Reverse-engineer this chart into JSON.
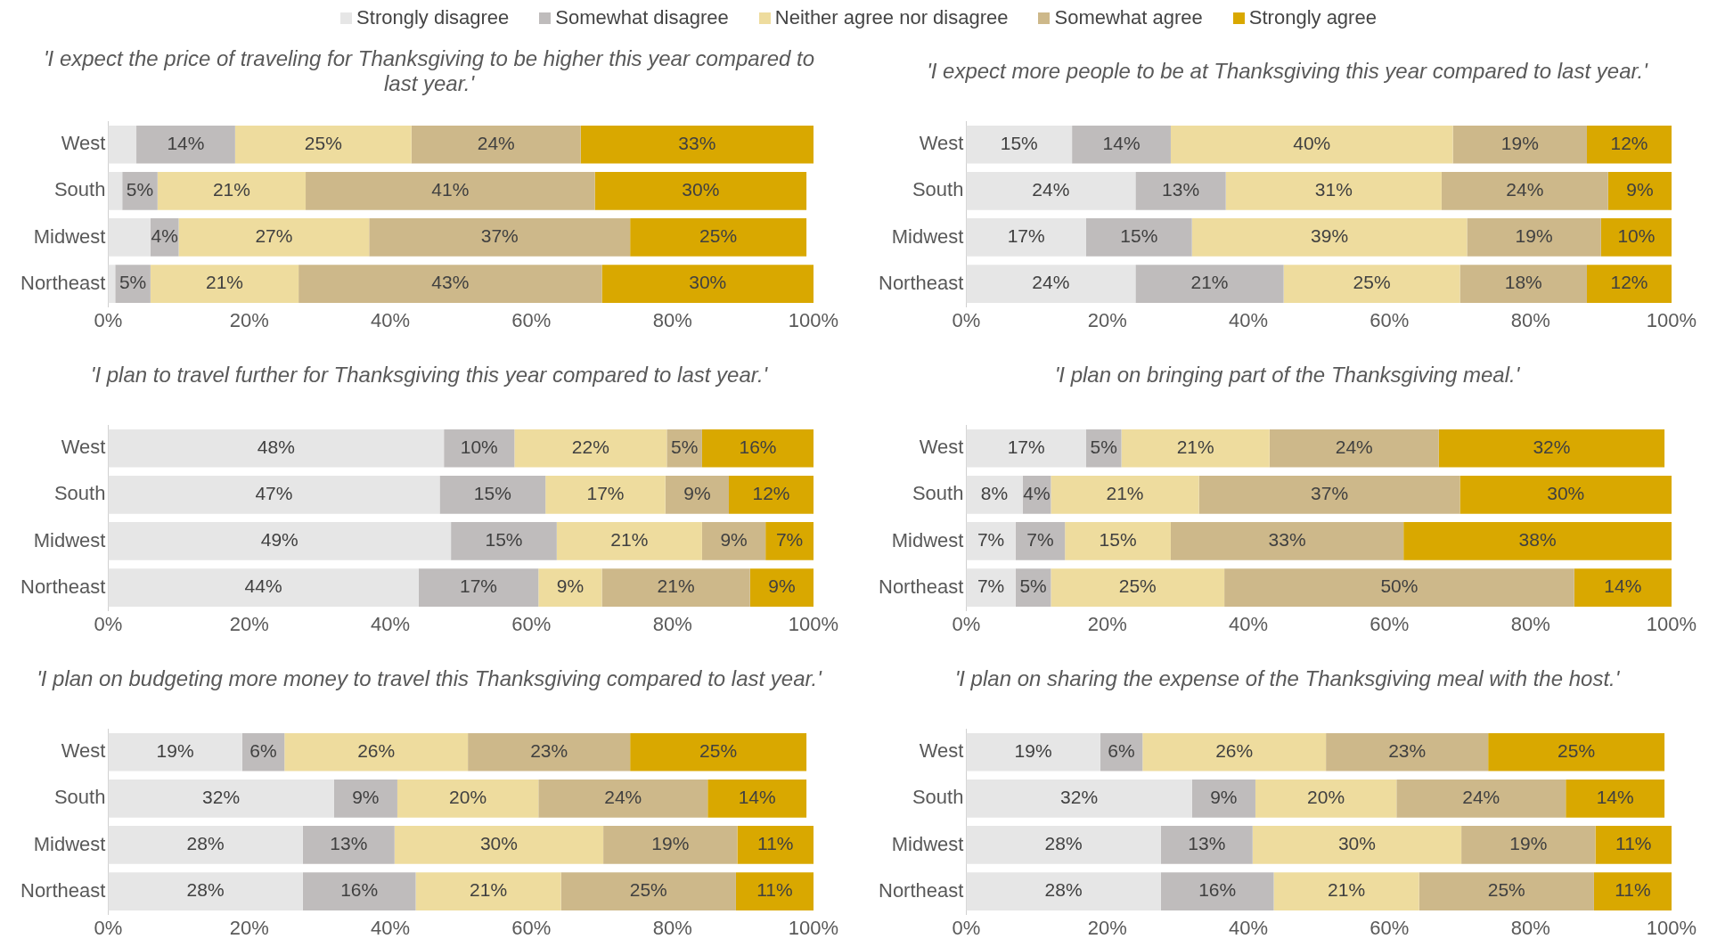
{
  "chart_data": [
    {
      "type": "bar",
      "orientation": "horizontal",
      "stacked": true,
      "title": "'I expect the price of traveling for Thanksgiving to be higher this year compared to last year.'",
      "categories": [
        "West",
        "South",
        "Midwest",
        "Northeast"
      ],
      "legend": "top",
      "grid": false,
      "xlim": [
        0,
        100
      ],
      "xticks": [
        {
          "value": 0,
          "label": "0%"
        },
        {
          "value": 20,
          "label": "20%"
        },
        {
          "value": 40,
          "label": "40%"
        },
        {
          "value": 60,
          "label": "60%"
        },
        {
          "value": 80,
          "label": "80%"
        },
        {
          "value": 100,
          "label": "100%"
        }
      ],
      "series": [
        {
          "name": "Strongly disagree",
          "color": "#e6e6e6",
          "values": [
            4,
            2,
            6,
            1
          ],
          "value_labels": [
            null,
            null,
            null,
            null
          ]
        },
        {
          "name": "Somewhat disagree",
          "color": "#bfbcbc",
          "values": [
            14,
            5,
            4,
            5
          ],
          "value_labels": [
            "14%",
            "5%",
            "4%",
            "5%"
          ]
        },
        {
          "name": "Neither agree nor disagree",
          "color": "#eedc9e",
          "values": [
            25,
            21,
            27,
            21
          ],
          "value_labels": [
            "25%",
            "21%",
            "27%",
            "21%"
          ]
        },
        {
          "name": "Somewhat agree",
          "color": "#cdb88a",
          "values": [
            24,
            41,
            37,
            43
          ],
          "value_labels": [
            "24%",
            "41%",
            "37%",
            "43%"
          ]
        },
        {
          "name": "Strongly agree",
          "color": "#d9a800",
          "values": [
            33,
            30,
            25,
            30
          ],
          "value_labels": [
            "33%",
            "30%",
            "25%",
            "30%"
          ]
        }
      ]
    },
    {
      "type": "bar",
      "orientation": "horizontal",
      "stacked": true,
      "title": "'I expect more people to be at Thanksgiving this year compared to last year.'",
      "categories": [
        "West",
        "South",
        "Midwest",
        "Northeast"
      ],
      "grid": false,
      "xlim": [
        0,
        100
      ],
      "xticks": [
        {
          "value": 0,
          "label": "0%"
        },
        {
          "value": 20,
          "label": "20%"
        },
        {
          "value": 40,
          "label": "40%"
        },
        {
          "value": 60,
          "label": "60%"
        },
        {
          "value": 80,
          "label": "80%"
        },
        {
          "value": 100,
          "label": "100%"
        }
      ],
      "series": [
        {
          "color": "#e6e6e6",
          "values": [
            15,
            24,
            17,
            24
          ],
          "value_labels": [
            "15%",
            "24%",
            "17%",
            "24%"
          ]
        },
        {
          "color": "#bfbcbc",
          "values": [
            14,
            12.8,
            15,
            21
          ],
          "value_labels": [
            "14%",
            "13%",
            "15%",
            "21%"
          ]
        },
        {
          "color": "#eedc9e",
          "values": [
            40,
            30.6,
            39,
            25
          ],
          "value_labels": [
            "40%",
            "31%",
            "39%",
            "25%"
          ]
        },
        {
          "color": "#cdb88a",
          "values": [
            19,
            23.6,
            19,
            18
          ],
          "value_labels": [
            "19%",
            "24%",
            "19%",
            "18%"
          ]
        },
        {
          "color": "#d9a800",
          "values": [
            12,
            9,
            10,
            12
          ],
          "value_labels": [
            "12%",
            "9%",
            "10%",
            "12%"
          ]
        }
      ]
    },
    {
      "type": "bar",
      "orientation": "horizontal",
      "stacked": true,
      "title": "'I plan to travel further for Thanksgiving this year compared to last year.'",
      "categories": [
        "West",
        "South",
        "Midwest",
        "Northeast"
      ],
      "grid": false,
      "xlim": [
        0,
        100
      ],
      "xticks": [
        {
          "value": 0,
          "label": "0%"
        },
        {
          "value": 20,
          "label": "20%"
        },
        {
          "value": 40,
          "label": "40%"
        },
        {
          "value": 60,
          "label": "60%"
        },
        {
          "value": 80,
          "label": "80%"
        },
        {
          "value": 100,
          "label": "100%"
        }
      ],
      "series": [
        {
          "color": "#e6e6e6",
          "values": [
            47.6,
            47,
            48.6,
            44
          ],
          "value_labels": [
            "48%",
            "47%",
            "49%",
            "44%"
          ]
        },
        {
          "color": "#bfbcbc",
          "values": [
            10,
            15,
            15,
            17
          ],
          "value_labels": [
            "10%",
            "15%",
            "15%",
            "17%"
          ]
        },
        {
          "color": "#eedc9e",
          "values": [
            21.6,
            17,
            20.6,
            9
          ],
          "value_labels": [
            "22%",
            "17%",
            "21%",
            "9%"
          ]
        },
        {
          "color": "#cdb88a",
          "values": [
            5,
            9,
            9,
            21
          ],
          "value_labels": [
            "5%",
            "9%",
            "9%",
            "21%"
          ]
        },
        {
          "color": "#d9a800",
          "values": [
            15.8,
            12,
            6.8,
            9
          ],
          "value_labels": [
            "16%",
            "12%",
            "7%",
            "9%"
          ]
        }
      ]
    },
    {
      "type": "bar",
      "orientation": "horizontal",
      "stacked": true,
      "title": "'I plan on bringing part of the Thanksgiving meal.'",
      "categories": [
        "West",
        "South",
        "Midwest",
        "Northeast"
      ],
      "grid": false,
      "xlim": [
        0,
        100
      ],
      "xticks": [
        {
          "value": 0,
          "label": "0%"
        },
        {
          "value": 20,
          "label": "20%"
        },
        {
          "value": 40,
          "label": "40%"
        },
        {
          "value": 60,
          "label": "60%"
        },
        {
          "value": 80,
          "label": "80%"
        },
        {
          "value": 100,
          "label": "100%"
        }
      ],
      "series": [
        {
          "color": "#e6e6e6",
          "values": [
            17,
            8,
            7,
            7
          ],
          "value_labels": [
            "17%",
            "8%",
            "7%",
            "7%"
          ]
        },
        {
          "color": "#bfbcbc",
          "values": [
            5,
            4,
            7,
            5
          ],
          "value_labels": [
            "5%",
            "4%",
            "7%",
            "5%"
          ]
        },
        {
          "color": "#eedc9e",
          "values": [
            21,
            21,
            15,
            24.6
          ],
          "value_labels": [
            "21%",
            "21%",
            "15%",
            "25%"
          ]
        },
        {
          "color": "#cdb88a",
          "values": [
            24,
            37,
            33,
            49.6
          ],
          "value_labels": [
            "24%",
            "37%",
            "33%",
            "50%"
          ]
        },
        {
          "color": "#d9a800",
          "values": [
            32,
            30,
            38,
            13.8
          ],
          "value_labels": [
            "32%",
            "30%",
            "38%",
            "14%"
          ]
        }
      ]
    },
    {
      "type": "bar",
      "orientation": "horizontal",
      "stacked": true,
      "title": "'I plan on budgeting more money to travel this Thanksgiving compared to last year.'",
      "categories": [
        "West",
        "South",
        "Midwest",
        "Northeast"
      ],
      "grid": false,
      "xlim": [
        0,
        100
      ],
      "xticks": [
        {
          "value": 0,
          "label": "0%"
        },
        {
          "value": 20,
          "label": "20%"
        },
        {
          "value": 40,
          "label": "40%"
        },
        {
          "value": 60,
          "label": "60%"
        },
        {
          "value": 80,
          "label": "80%"
        },
        {
          "value": 100,
          "label": "100%"
        }
      ],
      "series": [
        {
          "color": "#e6e6e6",
          "values": [
            19,
            32,
            27.6,
            27.6
          ],
          "value_labels": [
            "19%",
            "32%",
            "28%",
            "28%"
          ]
        },
        {
          "color": "#bfbcbc",
          "values": [
            6,
            9,
            13,
            16
          ],
          "value_labels": [
            "6%",
            "9%",
            "13%",
            "16%"
          ]
        },
        {
          "color": "#eedc9e",
          "values": [
            26,
            20,
            29.6,
            20.6
          ],
          "value_labels": [
            "26%",
            "20%",
            "30%",
            "21%"
          ]
        },
        {
          "color": "#cdb88a",
          "values": [
            23,
            24,
            19,
            24.8
          ],
          "value_labels": [
            "23%",
            "24%",
            "19%",
            "25%"
          ]
        },
        {
          "color": "#d9a800",
          "values": [
            25,
            14,
            10.8,
            11
          ],
          "value_labels": [
            "25%",
            "14%",
            "11%",
            "11%"
          ]
        }
      ]
    },
    {
      "type": "bar",
      "orientation": "horizontal",
      "stacked": true,
      "title": "'I plan on sharing the expense of the Thanksgiving meal with the host.'",
      "categories": [
        "West",
        "South",
        "Midwest",
        "Northeast"
      ],
      "grid": false,
      "xlim": [
        0,
        100
      ],
      "xticks": [
        {
          "value": 0,
          "label": "0%"
        },
        {
          "value": 20,
          "label": "20%"
        },
        {
          "value": 40,
          "label": "40%"
        },
        {
          "value": 60,
          "label": "60%"
        },
        {
          "value": 80,
          "label": "80%"
        },
        {
          "value": 100,
          "label": "100%"
        }
      ],
      "series": [
        {
          "color": "#e6e6e6",
          "values": [
            19,
            32,
            27.6,
            27.6
          ],
          "value_labels": [
            "19%",
            "32%",
            "28%",
            "28%"
          ]
        },
        {
          "color": "#bfbcbc",
          "values": [
            6,
            9,
            13,
            16
          ],
          "value_labels": [
            "6%",
            "9%",
            "13%",
            "16%"
          ]
        },
        {
          "color": "#eedc9e",
          "values": [
            26,
            20,
            29.6,
            20.6
          ],
          "value_labels": [
            "26%",
            "20%",
            "30%",
            "21%"
          ]
        },
        {
          "color": "#cdb88a",
          "values": [
            23,
            24,
            19,
            24.8
          ],
          "value_labels": [
            "23%",
            "24%",
            "19%",
            "25%"
          ]
        },
        {
          "color": "#d9a800",
          "values": [
            25,
            14,
            10.8,
            11
          ],
          "value_labels": [
            "25%",
            "14%",
            "11%",
            "11%"
          ]
        }
      ]
    }
  ]
}
